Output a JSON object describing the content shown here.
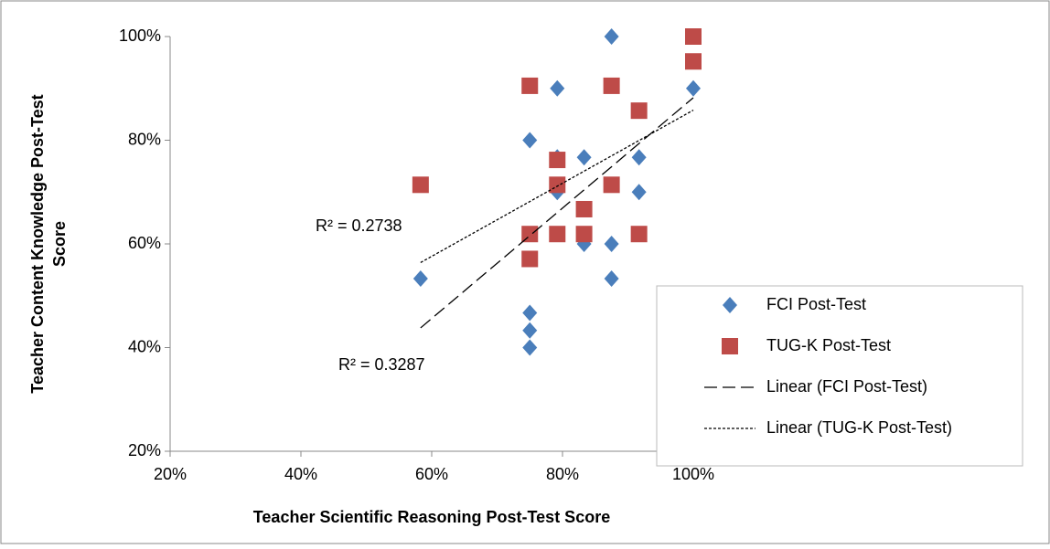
{
  "chart_data": {
    "type": "scatter",
    "x_label": "Teacher Scientific Reasoning Post-Test Score",
    "y_label": [
      "Teacher  Content Knowledge Post-Test",
      "Score"
    ],
    "xlim": [
      20,
      100
    ],
    "ylim": [
      20,
      100
    ],
    "xticks": [
      {
        "value": 20,
        "label": "20%"
      },
      {
        "value": 40,
        "label": "40%"
      },
      {
        "value": 60,
        "label": "60%"
      },
      {
        "value": 80,
        "label": "80%"
      },
      {
        "value": 100,
        "label": "100%"
      }
    ],
    "yticks": [
      {
        "value": 20,
        "label": "20%"
      },
      {
        "value": 40,
        "label": "40%"
      },
      {
        "value": 60,
        "label": "60%"
      },
      {
        "value": 80,
        "label": "80%"
      },
      {
        "value": 100,
        "label": "100%"
      }
    ],
    "legend": "right",
    "series": [
      {
        "name": "FCI Post-Test",
        "color": "#4a7ebb",
        "marker": "diamond",
        "x": [
          58.3,
          75,
          75,
          75,
          75,
          79.2,
          79.2,
          79.2,
          83.3,
          83.3,
          87.5,
          87.5,
          87.5,
          91.7,
          91.7,
          100
        ],
        "values": [
          53.3,
          80,
          46.7,
          43.3,
          40,
          90,
          76.7,
          70,
          76.7,
          60,
          100,
          60,
          53.3,
          76.7,
          70,
          90
        ]
      },
      {
        "name": "TUG-K Post-Test",
        "color": "#be4b48",
        "marker": "square",
        "x": [
          58.3,
          75,
          75,
          75,
          79.2,
          79.2,
          79.2,
          83.3,
          83.3,
          87.5,
          87.5,
          91.7,
          91.7,
          100,
          100
        ],
        "values": [
          71.4,
          90.5,
          61.9,
          57.1,
          76.2,
          71.4,
          61.9,
          66.7,
          61.9,
          90.5,
          71.4,
          85.7,
          61.9,
          100,
          95.2
        ]
      },
      {
        "name": "Linear (FCI Post-Test)",
        "color": "#000000",
        "line": "long-dash",
        "x": [
          58.3,
          100
        ],
        "values": [
          43.8,
          88.2
        ]
      },
      {
        "name": "Linear (TUG-K Post-Test)",
        "color": "#000000",
        "line": "short-dash",
        "x": [
          58.3,
          100
        ],
        "values": [
          56.4,
          85.8
        ]
      }
    ],
    "annotations": [
      "R² = 0.2738",
      "R² = 0.3287"
    ]
  }
}
